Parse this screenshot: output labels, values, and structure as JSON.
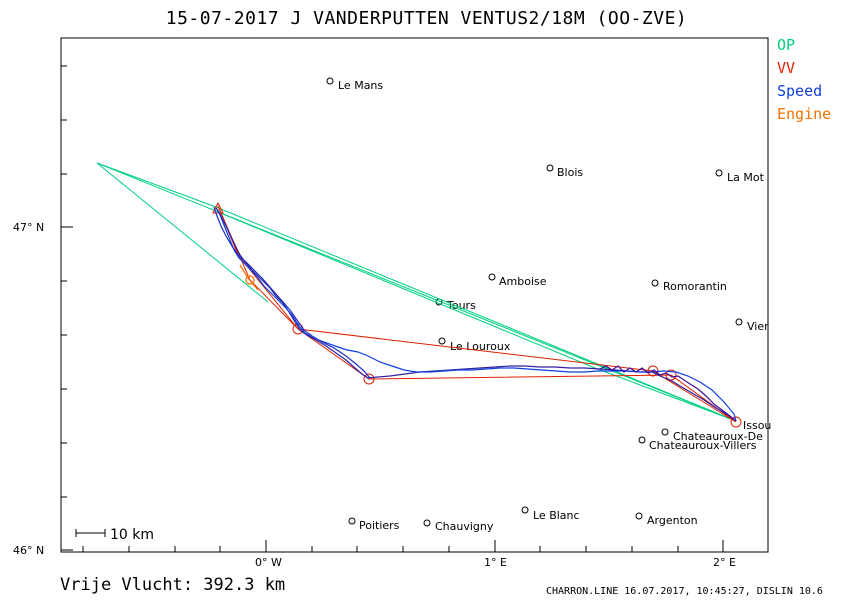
{
  "header": {
    "title": "15-07-2017   J VANDERPUTTEN   VENTUS2/18M (OO-ZVE)"
  },
  "legend": {
    "items": [
      {
        "label": "OP",
        "color": "#00d080"
      },
      {
        "label": "VV",
        "color": "#e02000"
      },
      {
        "label": "Speed",
        "color": "#1040e0"
      },
      {
        "label": "Engine",
        "color": "#f07000"
      }
    ]
  },
  "axes": {
    "y_ticks": [
      "47° N",
      "46° N"
    ],
    "x_ticks": [
      "0° W",
      "1° E",
      "2° E"
    ]
  },
  "places": [
    {
      "name": "Le Mans"
    },
    {
      "name": "Blois"
    },
    {
      "name": "La Mot"
    },
    {
      "name": "Amboise"
    },
    {
      "name": "Romorantin"
    },
    {
      "name": "Tours"
    },
    {
      "name": "Vier"
    },
    {
      "name": "Le Louroux"
    },
    {
      "name": "Issou"
    },
    {
      "name": "Chateauroux-De"
    },
    {
      "name": "Chateauroux-Villers"
    },
    {
      "name": "Poitiers"
    },
    {
      "name": "Chauvigny"
    },
    {
      "name": "Le Blanc"
    },
    {
      "name": "Argenton"
    }
  ],
  "scale_bar": {
    "label": "10 km"
  },
  "footer": {
    "distance": "Vrije Vlucht:  392.3 km",
    "credit": "CHARRON.LINE 16.07.2017, 10:45:27, DISLIN 10.6"
  }
}
